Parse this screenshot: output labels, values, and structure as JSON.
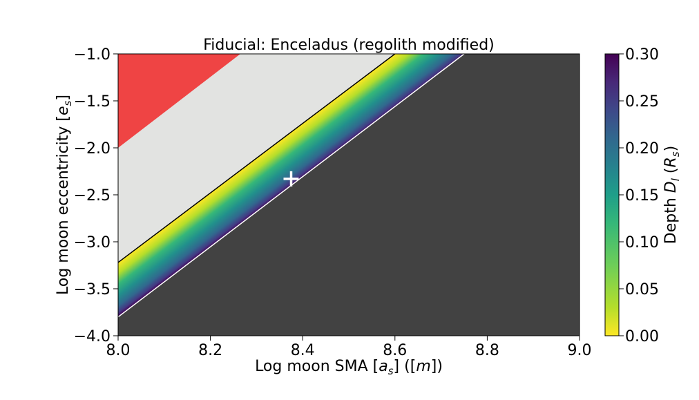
{
  "chart_data": {
    "type": "heatmap",
    "title": "Fiducial: Enceladus (regolith modified)",
    "xlabel": {
      "text": "Log moon SMA ",
      "sym": "a",
      "sub": "s",
      "tail": " ([",
      "unit": "m",
      "end": "])"
    },
    "ylabel": {
      "text": "Log moon eccentricity ",
      "sym": "e",
      "sub": "s",
      "end": "]"
    },
    "colorbar_label": {
      "text": "Depth ",
      "sym": "D",
      "sub": "l",
      "unit_sym": "R",
      "unit_sub": "s"
    },
    "xlim": [
      8.0,
      9.0
    ],
    "ylim": [
      -4.0,
      -1.0
    ],
    "x_ticks": [
      "8.0",
      "8.2",
      "8.4",
      "8.6",
      "8.8",
      "9.0"
    ],
    "y_ticks": [
      "−4.0",
      "−3.5",
      "−3.0",
      "−2.5",
      "−2.0",
      "−1.5",
      "−1.0"
    ],
    "colorbar_ticks": [
      "0.00",
      "0.05",
      "0.10",
      "0.15",
      "0.20",
      "0.25",
      "0.30"
    ],
    "colorbar_range": [
      0.0,
      0.3
    ],
    "colormap": "viridis_r",
    "regions": {
      "red_region": {
        "color": "#ef4444",
        "boundary": [
          [
            8.0,
            -2.0
          ],
          [
            8.265,
            -1.0
          ]
        ]
      },
      "gray_region": {
        "color": "#e2e3e1"
      },
      "gradient_band": {
        "upper_boundary": [
          [
            8.0,
            -3.22
          ],
          [
            8.6,
            -1.0
          ]
        ],
        "lower_boundary": [
          [
            8.0,
            -3.8
          ],
          [
            8.75,
            -1.0
          ]
        ]
      },
      "dark_region": {
        "color": "#424242"
      }
    },
    "marker": {
      "symbol": "+",
      "x": 8.375,
      "y": -2.33,
      "color": "#ffffff"
    }
  }
}
